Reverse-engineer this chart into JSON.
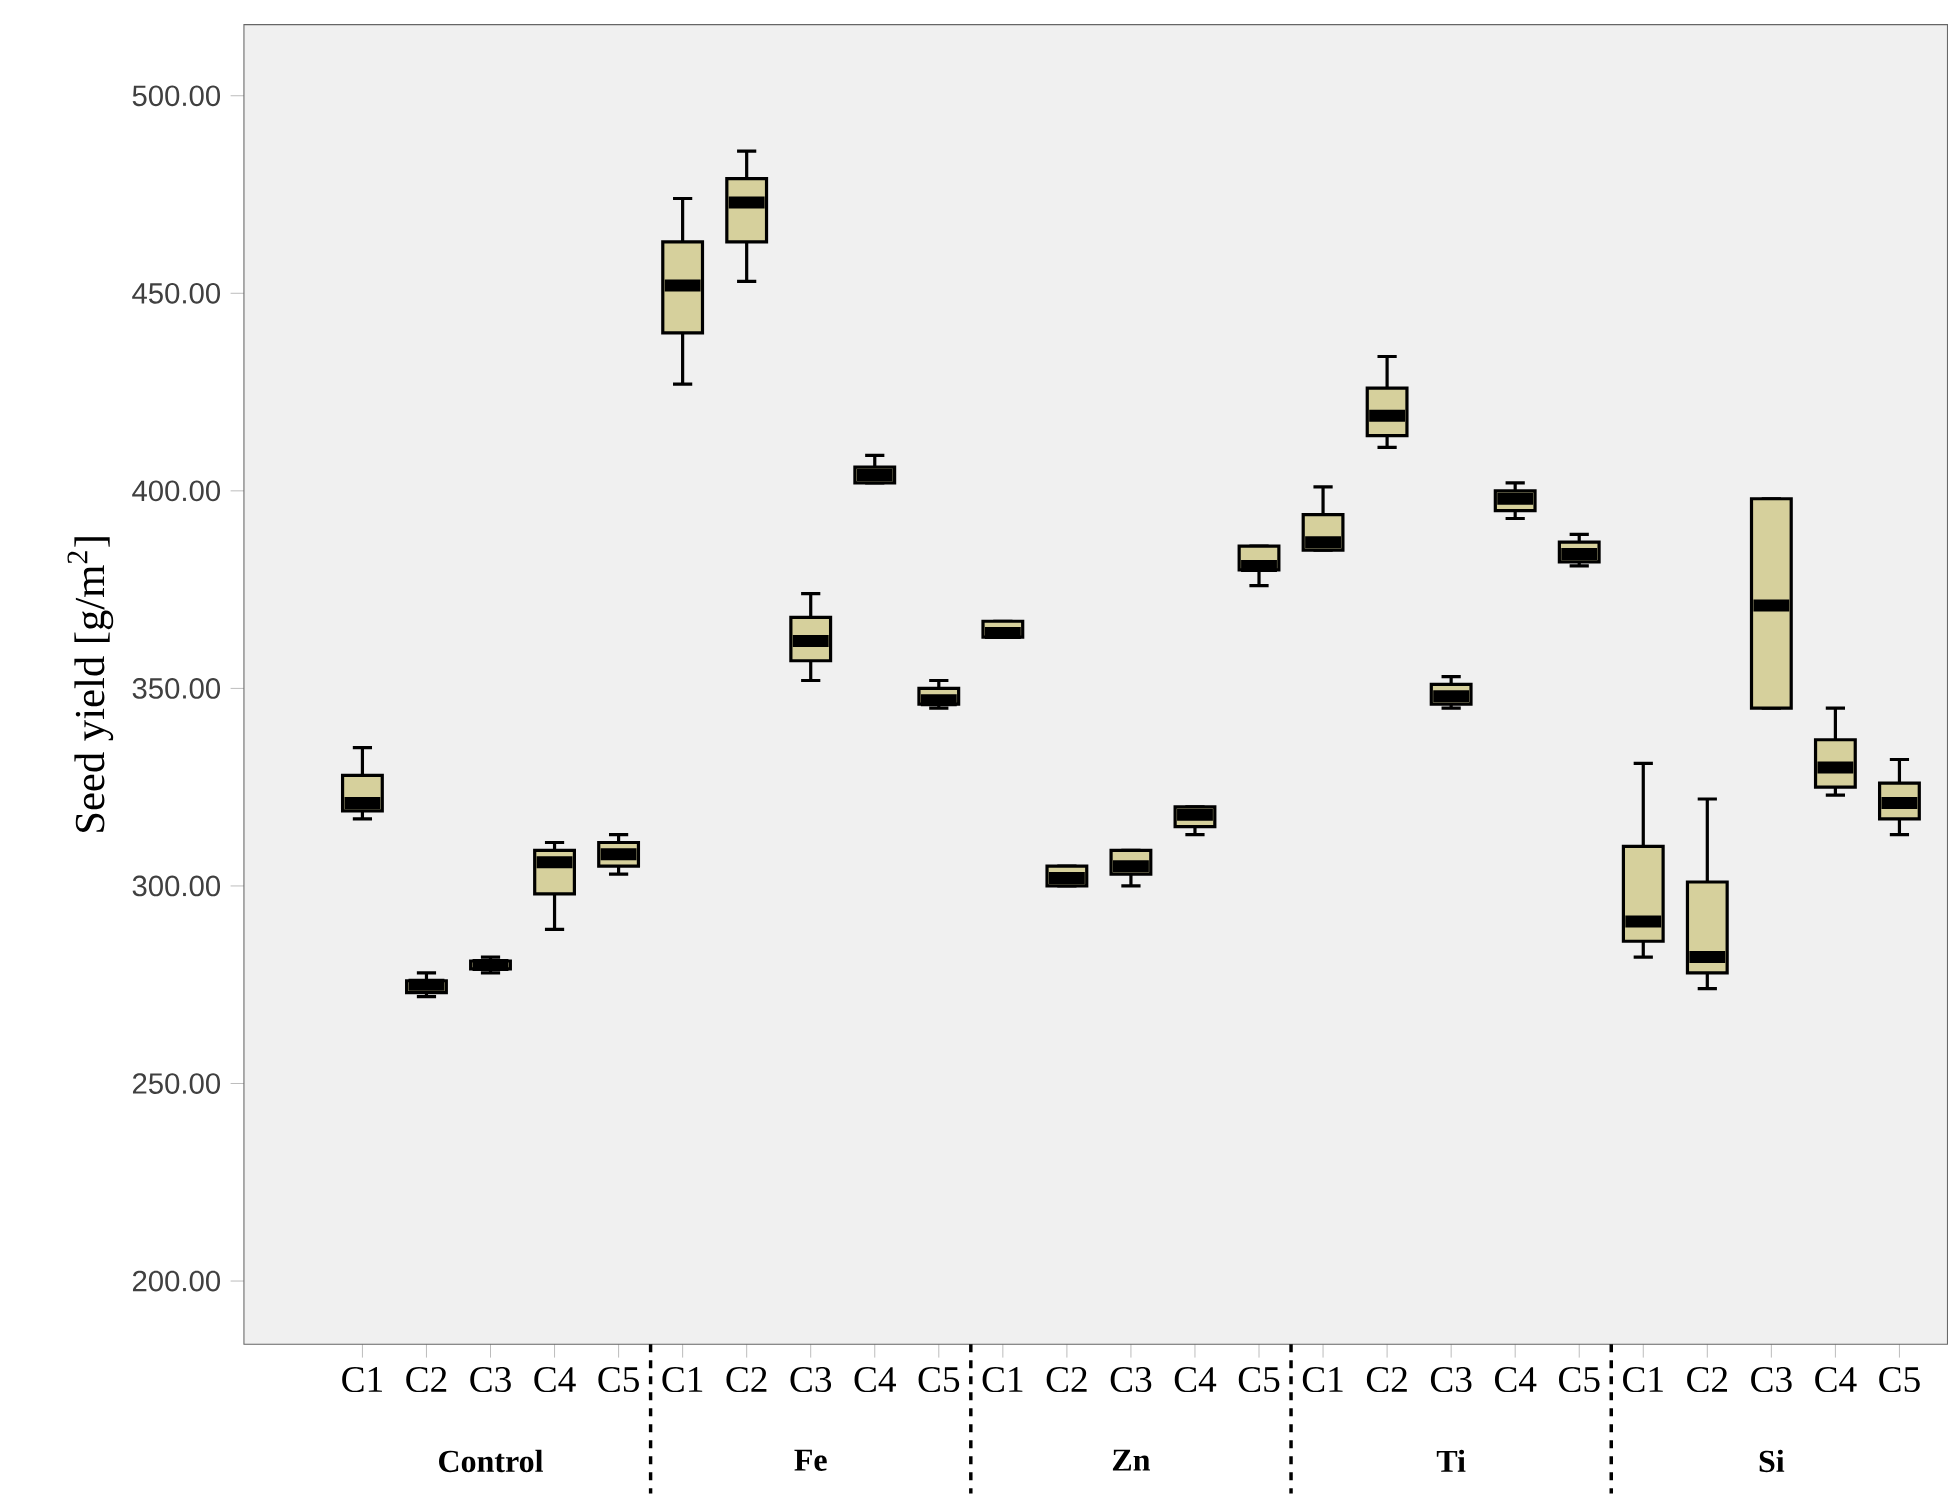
{
  "chart_data": {
    "type": "box",
    "ylabel": "Seed yield [g/m$^{2}$]",
    "color": "#d6d09c",
    "categories": [
      "C1",
      "C2",
      "C3",
      "C4",
      "C5",
      "C1",
      "C2",
      "C3",
      "C4",
      "C5",
      "C1",
      "C2",
      "C3",
      "C4",
      "C5",
      "C1",
      "C2",
      "C3",
      "C4",
      "C5",
      "C1",
      "C2",
      "C3",
      "C4",
      "C5"
    ],
    "boxes": [
      {
        "low": 317,
        "q1": 319,
        "median": 321,
        "q3": 328,
        "high": 335
      },
      {
        "low": 272,
        "q1": 273,
        "median": 275,
        "q3": 276,
        "high": 278
      },
      {
        "low": 278,
        "q1": 279,
        "median": 280,
        "q3": 281,
        "high": 282
      },
      {
        "low": 289,
        "q1": 298,
        "median": 306,
        "q3": 309,
        "high": 311
      },
      {
        "low": 303,
        "q1": 305,
        "median": 308,
        "q3": 311,
        "high": 313
      },
      {
        "low": 427,
        "q1": 440,
        "median": 452,
        "q3": 463,
        "high": 474
      },
      {
        "low": 453,
        "q1": 463,
        "median": 473,
        "q3": 479,
        "high": 486
      },
      {
        "low": 352,
        "q1": 357,
        "median": 362,
        "q3": 368,
        "high": 374
      },
      {
        "low": 402,
        "q1": 402,
        "median": 404,
        "q3": 406,
        "high": 409
      },
      {
        "low": 345,
        "q1": 346,
        "median": 347,
        "q3": 350,
        "high": 352
      },
      {
        "low": 363,
        "q1": 363,
        "median": 364,
        "q3": 367,
        "high": 367
      },
      {
        "low": 300,
        "q1": 300,
        "median": 302,
        "q3": 305,
        "high": 305
      },
      {
        "low": 300,
        "q1": 303,
        "median": 305,
        "q3": 309,
        "high": 309
      },
      {
        "low": 313,
        "q1": 315,
        "median": 318,
        "q3": 320,
        "high": 320
      },
      {
        "low": 376,
        "q1": 380,
        "median": 381,
        "q3": 386,
        "high": 386
      },
      {
        "low": 385,
        "q1": 385,
        "median": 387,
        "q3": 394,
        "high": 401
      },
      {
        "low": 411,
        "q1": 414,
        "median": 419,
        "q3": 426,
        "high": 434
      },
      {
        "low": 345,
        "q1": 346,
        "median": 348,
        "q3": 351,
        "high": 353
      },
      {
        "low": 393,
        "q1": 395,
        "median": 398,
        "q3": 400,
        "high": 402
      },
      {
        "low": 381,
        "q1": 382,
        "median": 384,
        "q3": 387,
        "high": 389
      },
      {
        "low": 282,
        "q1": 286,
        "median": 291,
        "q3": 310,
        "high": 331
      },
      {
        "low": 274,
        "q1": 278,
        "median": 282,
        "q3": 301,
        "high": 322
      },
      {
        "low": 345,
        "q1": 345,
        "median": 371,
        "q3": 398,
        "high": 398
      },
      {
        "low": 323,
        "q1": 325,
        "median": 330,
        "q3": 337,
        "high": 345
      },
      {
        "low": 313,
        "q1": 317,
        "median": 321,
        "q3": 326,
        "high": 332
      }
    ],
    "ylim": [
      184,
      518
    ],
    "yticks": [
      {
        "value": 200,
        "label": "200.00"
      },
      {
        "value": 250,
        "label": "250.00"
      },
      {
        "value": 300,
        "label": "300.00"
      },
      {
        "value": 350,
        "label": "350.00"
      },
      {
        "value": 400,
        "label": "400.00"
      },
      {
        "value": 450,
        "label": "450.00"
      },
      {
        "value": 500,
        "label": "500.00"
      }
    ],
    "annotations": [
      "Control",
      "Fe",
      "Zn",
      "Ti",
      "Si"
    ]
  }
}
